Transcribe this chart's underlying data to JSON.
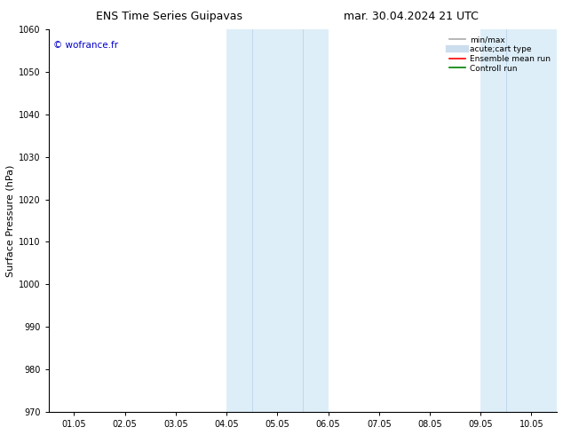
{
  "title_left": "ENS Time Series Guipavas",
  "title_right": "mar. 30.04.2024 21 UTC",
  "ylabel": "Surface Pressure (hPa)",
  "xlim_dates": [
    "01.05",
    "02.05",
    "03.05",
    "04.05",
    "05.05",
    "06.05",
    "07.05",
    "08.05",
    "09.05",
    "10.05"
  ],
  "ylim": [
    970,
    1060
  ],
  "yticks": [
    970,
    980,
    990,
    1000,
    1010,
    1020,
    1030,
    1040,
    1050,
    1060
  ],
  "xtick_positions": [
    0,
    1,
    2,
    3,
    4,
    5,
    6,
    7,
    8,
    9
  ],
  "shaded_regions": [
    {
      "xmin": 3.0,
      "xmax": 5.0,
      "color": "#ddeef8"
    },
    {
      "xmin": 8.0,
      "xmax": 9.5,
      "color": "#ddeef8"
    }
  ],
  "vertical_lines": [
    {
      "x": 3.5,
      "color": "#c0d8ec",
      "lw": 0.7
    },
    {
      "x": 4.5,
      "color": "#c0d8ec",
      "lw": 0.7
    },
    {
      "x": 8.5,
      "color": "#c0d8ec",
      "lw": 0.7
    },
    {
      "x": 9.5,
      "color": "#c0d8ec",
      "lw": 0.7
    }
  ],
  "watermark": "© wofrance.fr",
  "watermark_color": "#0000cc",
  "legend_entries": [
    {
      "label": "min/max",
      "color": "#aaaaaa",
      "lw": 1.2
    },
    {
      "label": "acute;cart type",
      "color": "#ccddee",
      "lw": 6
    },
    {
      "label": "Ensemble mean run",
      "color": "#ff0000",
      "lw": 1.2
    },
    {
      "label": "Controll run",
      "color": "#008000",
      "lw": 1.2
    }
  ],
  "bg_color": "#ffffff",
  "plot_bg_color": "#ffffff",
  "spine_color": "#000000",
  "tick_label_fontsize": 7,
  "title_fontsize": 9,
  "ylabel_fontsize": 8,
  "watermark_fontsize": 7.5,
  "legend_fontsize": 6.5
}
